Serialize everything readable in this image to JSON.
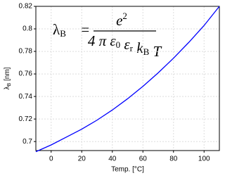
{
  "chart_data": {
    "type": "line",
    "x": [
      -10,
      0,
      10,
      20,
      30,
      40,
      50,
      60,
      70,
      80,
      90,
      100,
      110
    ],
    "series": [
      {
        "color": "#0000ff",
        "values": [
          0.691,
          0.697,
          0.704,
          0.711,
          0.719,
          0.728,
          0.738,
          0.749,
          0.761,
          0.774,
          0.788,
          0.803,
          0.82
        ]
      }
    ],
    "xlim": [
      -10,
      110
    ],
    "xticks": [
      0,
      20,
      40,
      60,
      80,
      100
    ],
    "ylim": [
      0.692,
      0.82
    ],
    "yticks": [
      0.7,
      0.72,
      0.74,
      0.76,
      0.78,
      0.8,
      0.82
    ],
    "xlabel": "Temp. [°C]",
    "ylabel": {
      "symbol": "λ",
      "sub": "B",
      "unit": " [nm]"
    },
    "grid": true,
    "annotation": {
      "lhs": "λ",
      "lhs_sub": "B",
      "equals": "=",
      "numerator": "e",
      "numerator_sup": "2",
      "denominator": [
        {
          "text": "4 π ε",
          "sub": "0"
        },
        {
          "text": " ε",
          "sub": "r"
        },
        {
          "text": " k",
          "sub": "B"
        },
        {
          "text": " T"
        }
      ]
    }
  }
}
